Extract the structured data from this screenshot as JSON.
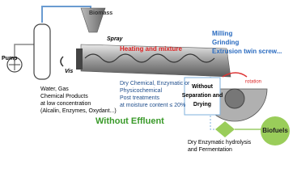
{
  "labels": {
    "pump": "Pump",
    "biomass": "Biomass",
    "spray": "Spray",
    "heating": "Heating and mixture",
    "milling": [
      "Milling",
      "Grinding",
      "Extrusion twin screw..."
    ],
    "vis": "Vis",
    "inputs": [
      "Water, Gas",
      "Chemical Products",
      "at low concentration",
      "(Alcalin, Enzymes, Oxydant...)"
    ],
    "treatments": [
      "Dry Chemical, Enzymatic or",
      "Physicochemical",
      "Post treatments",
      "at moisture content ≤ 20%"
    ],
    "rotation": "rotation",
    "without_separation": [
      "Without",
      "Separation and",
      "Drying"
    ],
    "without_effluent": "Without Effluent",
    "biofuels": "Biofuels",
    "hydrolysis": [
      "Dry Enzymatic hydrolysis",
      "and Fermentation"
    ]
  }
}
